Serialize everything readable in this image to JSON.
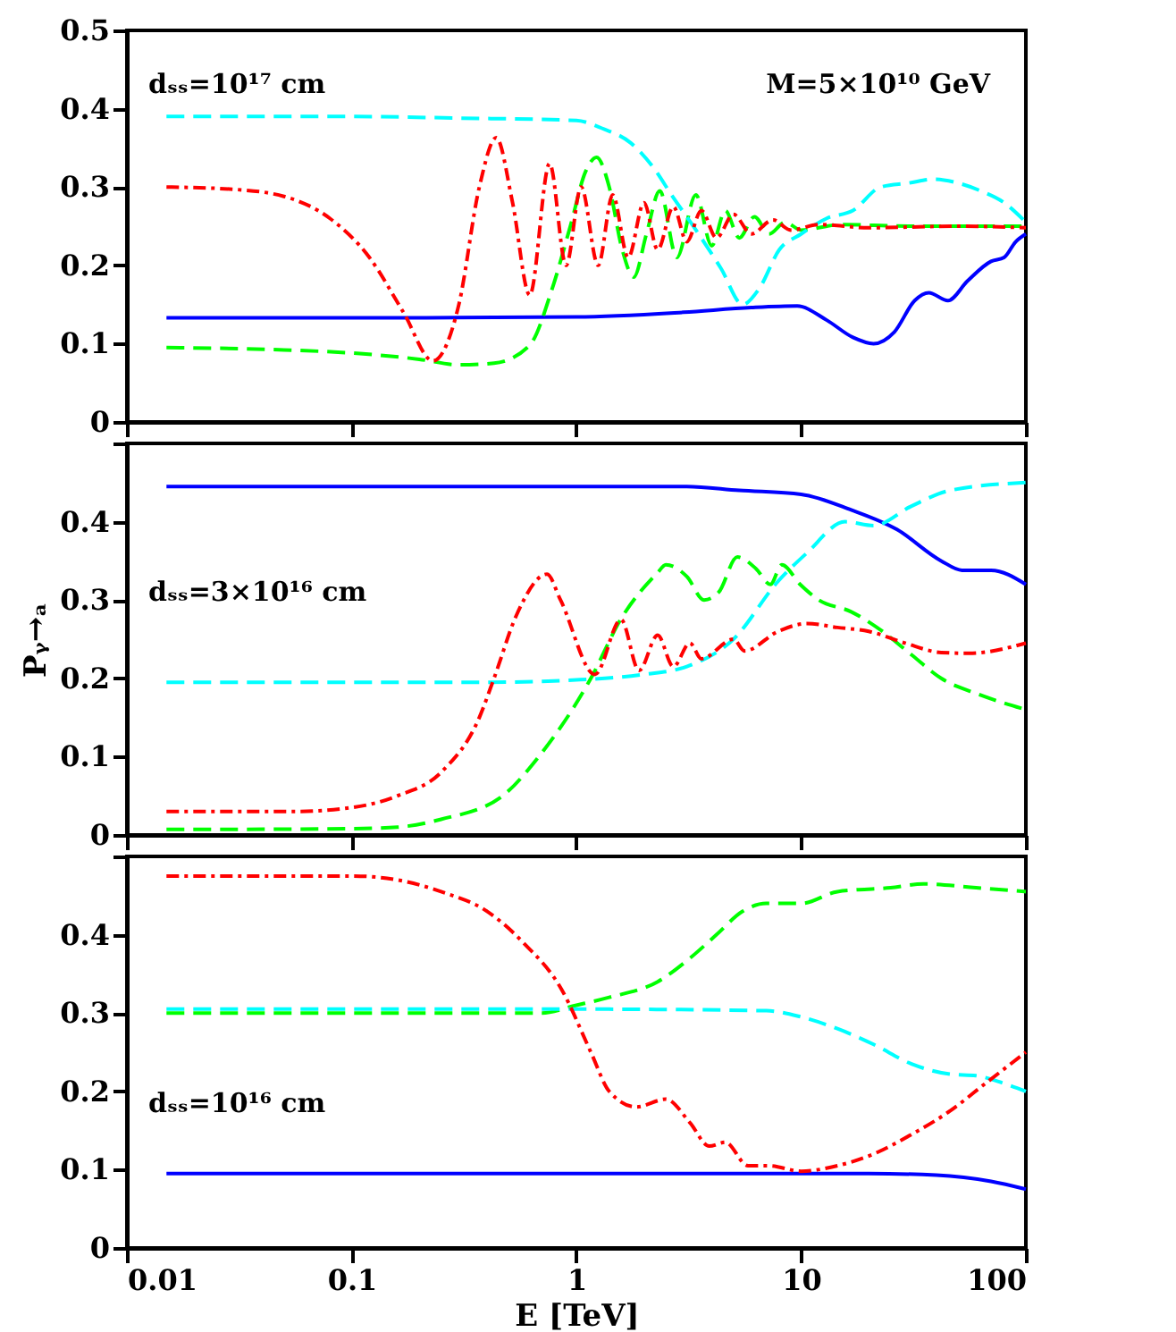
{
  "chart_data": [
    {
      "type": "line",
      "log": "x",
      "xlim": [
        0.01,
        100
      ],
      "xticks": [
        0.01,
        0.1,
        1,
        10,
        100
      ],
      "ylim": [
        0,
        0.5
      ],
      "yticks": [
        0,
        0.1,
        0.2,
        0.3,
        0.4,
        0.5
      ],
      "tick_labels": "y",
      "grid": false,
      "annotations": [
        "dₛₛ=10¹⁷ cm",
        "M=5×10¹⁰ GeV"
      ],
      "series": [
        {
          "color": "#0000ff",
          "line_style": "solid",
          "x": [
            0.015,
            0.1,
            1,
            3,
            6,
            9.6,
            13,
            17,
            21,
            26,
            32,
            37,
            45,
            55,
            70,
            80,
            90,
            100
          ],
          "values": [
            0.133,
            0.133,
            0.134,
            0.14,
            0.146,
            0.148,
            0.13,
            0.108,
            0.1,
            0.115,
            0.155,
            0.165,
            0.155,
            0.18,
            0.205,
            0.21,
            0.23,
            0.24
          ]
        },
        {
          "color": "#00ff00",
          "line_style": "dashed",
          "x": [
            0.015,
            0.05,
            0.1,
            0.2,
            0.3,
            0.43,
            0.62,
            0.78,
            0.94,
            1.1,
            1.23,
            1.4,
            1.6,
            1.8,
            2.05,
            2.35,
            2.8,
            3.4,
            4,
            4.6,
            5.3,
            6.2,
            7.2,
            8.5,
            10,
            15,
            30,
            100
          ],
          "values": [
            0.095,
            0.092,
            0.088,
            0.08,
            0.073,
            0.075,
            0.098,
            0.17,
            0.25,
            0.32,
            0.338,
            0.3,
            0.22,
            0.185,
            0.24,
            0.295,
            0.21,
            0.29,
            0.225,
            0.27,
            0.235,
            0.262,
            0.24,
            0.255,
            0.245,
            0.252,
            0.25,
            0.25
          ]
        },
        {
          "color": "#00ffff",
          "line_style": "dashed",
          "x": [
            0.015,
            0.1,
            0.3,
            1,
            1.3,
            1.75,
            2.2,
            2.65,
            3.5,
            4.4,
            5.5,
            6.5,
            8,
            10,
            13,
            17,
            22.6,
            30,
            39,
            50,
            63,
            80,
            100
          ],
          "values": [
            0.39,
            0.39,
            0.388,
            0.385,
            0.375,
            0.356,
            0.325,
            0.29,
            0.24,
            0.196,
            0.15,
            0.17,
            0.22,
            0.24,
            0.26,
            0.27,
            0.3,
            0.305,
            0.31,
            0.305,
            0.295,
            0.28,
            0.255
          ]
        },
        {
          "color": "#ff0000",
          "line_style": "dotted",
          "x": [
            0.015,
            0.03,
            0.05,
            0.08,
            0.12,
            0.17,
            0.23,
            0.3,
            0.37,
            0.44,
            0.52,
            0.62,
            0.76,
            0.9,
            1.05,
            1.25,
            1.45,
            1.7,
            2,
            2.3,
            2.7,
            3.1,
            3.6,
            4.2,
            5,
            6,
            7.5,
            9,
            12,
            20,
            50,
            100
          ],
          "values": [
            0.3,
            0.297,
            0.288,
            0.26,
            0.21,
            0.14,
            0.078,
            0.15,
            0.3,
            0.363,
            0.28,
            0.162,
            0.33,
            0.2,
            0.3,
            0.2,
            0.29,
            0.21,
            0.28,
            0.22,
            0.275,
            0.23,
            0.27,
            0.235,
            0.265,
            0.24,
            0.258,
            0.245,
            0.252,
            0.248,
            0.25,
            0.248
          ]
        }
      ]
    },
    {
      "type": "line",
      "ylabel": "Pᵧ→ₐ",
      "log": "x",
      "xlim": [
        0.01,
        100
      ],
      "xticks": [
        0.01,
        0.1,
        1,
        10,
        100
      ],
      "ylim": [
        0,
        0.5
      ],
      "yticks": [
        0,
        0.1,
        0.2,
        0.3,
        0.4,
        {
          "value": 0.5,
          "label": null
        }
      ],
      "tick_labels": "y",
      "grid": false,
      "annotations": [
        "dₛₛ=3×10¹⁶ cm"
      ],
      "series": [
        {
          "color": "#0000ff",
          "line_style": "solid",
          "x": [
            0.015,
            1,
            3.1,
            5.3,
            10,
            16.7,
            26.7,
            42,
            52,
            70,
            100
          ],
          "values": [
            0.445,
            0.445,
            0.445,
            0.44,
            0.435,
            0.415,
            0.39,
            0.35,
            0.338,
            0.338,
            0.32
          ]
        },
        {
          "color": "#00ff00",
          "line_style": "dashed",
          "x": [
            0.015,
            0.1,
            0.16,
            0.25,
            0.47,
            0.68,
            1.16,
            1.58,
            2.3,
            2.5,
            3.1,
            3.7,
            4.3,
            5.2,
            6.3,
            7.3,
            8.2,
            9.9,
            12,
            16.7,
            23,
            31,
            42,
            61,
            100
          ],
          "values": [
            0.007,
            0.008,
            0.01,
            0.02,
            0.05,
            0.1,
            0.2,
            0.276,
            0.335,
            0.345,
            0.33,
            0.3,
            0.31,
            0.355,
            0.34,
            0.32,
            0.345,
            0.32,
            0.3,
            0.285,
            0.26,
            0.23,
            0.2,
            0.18,
            0.16
          ]
        },
        {
          "color": "#00ffff",
          "line_style": "dashed",
          "x": [
            0.015,
            0.4,
            1,
            2,
            3.1,
            5,
            7.9,
            10.6,
            15.7,
            21,
            31,
            46,
            100
          ],
          "values": [
            0.195,
            0.195,
            0.198,
            0.205,
            0.215,
            0.25,
            0.324,
            0.36,
            0.4,
            0.395,
            0.42,
            0.44,
            0.45
          ]
        },
        {
          "color": "#ff0000",
          "line_style": "dotted",
          "x": [
            0.015,
            0.055,
            0.1,
            0.16,
            0.25,
            0.37,
            0.43,
            0.54,
            0.74,
            0.85,
            1.21,
            1.58,
            1.9,
            2.3,
            2.7,
            3.2,
            3.6,
            5,
            5.6,
            7.9,
            10.6,
            14.5,
            20,
            29,
            42,
            56,
            100
          ],
          "values": [
            0.03,
            0.03,
            0.035,
            0.05,
            0.08,
            0.15,
            0.2,
            0.28,
            0.333,
            0.3,
            0.205,
            0.275,
            0.21,
            0.255,
            0.215,
            0.245,
            0.225,
            0.25,
            0.235,
            0.26,
            0.27,
            0.265,
            0.26,
            0.245,
            0.233,
            0.232,
            0.245
          ]
        }
      ]
    },
    {
      "type": "line",
      "xlabel": "E [TeV]",
      "log": "x",
      "xlim": [
        0.01,
        100
      ],
      "xticks": [
        0.01,
        0.1,
        1,
        10,
        100
      ],
      "ylim": [
        0,
        0.5
      ],
      "yticks": [
        0,
        0.1,
        0.2,
        0.3,
        0.4,
        {
          "value": 0.5,
          "label": null
        }
      ],
      "grid": false,
      "annotations": [
        "dₛₛ=10¹⁶ cm"
      ],
      "series": [
        {
          "color": "#0000ff",
          "line_style": "solid",
          "x": [
            0.015,
            1,
            20,
            40,
            70,
            100
          ],
          "values": [
            0.095,
            0.095,
            0.095,
            0.093,
            0.085,
            0.075
          ]
        },
        {
          "color": "#00ff00",
          "line_style": "dashed",
          "x": [
            0.015,
            0.7,
            1,
            1.4,
            2.3,
            3.2,
            4.2,
            5.5,
            7,
            10,
            14.5,
            25,
            35,
            60,
            100
          ],
          "values": [
            0.3,
            0.3,
            0.31,
            0.32,
            0.34,
            0.37,
            0.4,
            0.43,
            0.44,
            0.44,
            0.455,
            0.46,
            0.465,
            0.46,
            0.455
          ]
        },
        {
          "color": "#00ffff",
          "line_style": "dashed",
          "x": [
            0.015,
            1,
            7,
            10,
            14.5,
            21,
            31,
            46,
            60,
            80,
            100
          ],
          "values": [
            0.305,
            0.305,
            0.303,
            0.295,
            0.28,
            0.26,
            0.235,
            0.222,
            0.22,
            0.21,
            0.2
          ]
        },
        {
          "color": "#ff0000",
          "line_style": "dotted",
          "x": [
            0.015,
            0.1,
            0.16,
            0.25,
            0.4,
            0.58,
            0.86,
            1.16,
            1.4,
            1.85,
            2.5,
            3.2,
            3.9,
            4.6,
            5.8,
            7.2,
            10,
            14.5,
            21,
            31,
            46,
            66,
            100
          ],
          "values": [
            0.475,
            0.475,
            0.47,
            0.455,
            0.43,
            0.39,
            0.33,
            0.25,
            0.2,
            0.18,
            0.19,
            0.16,
            0.13,
            0.135,
            0.105,
            0.105,
            0.098,
            0.105,
            0.12,
            0.145,
            0.175,
            0.21,
            0.25
          ]
        }
      ]
    }
  ]
}
